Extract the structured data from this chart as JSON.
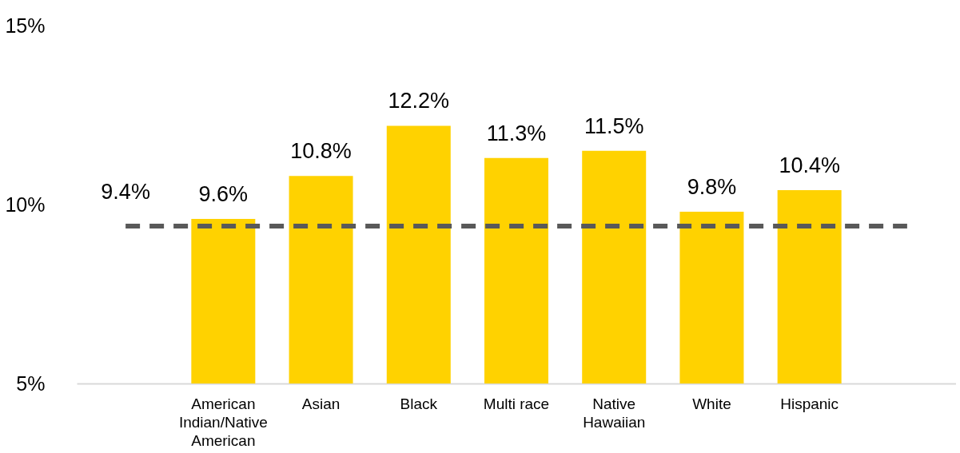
{
  "chart_data": {
    "type": "bar",
    "categories": [
      null,
      "American Indian/Native American",
      "Asian",
      "Black",
      "Multi race",
      "Native Hawaiian",
      "White",
      "Hispanic",
      null
    ],
    "series": [
      {
        "color": "#ffd200",
        "values": [
          null,
          9.6,
          10.8,
          12.2,
          11.3,
          11.5,
          9.8,
          10.4,
          null
        ],
        "value_labels": [
          null,
          "9.6%",
          "10.8%",
          "12.2%",
          "11.3%",
          "11.5%",
          "9.8%",
          "10.4%",
          null
        ]
      },
      {
        "type": "line",
        "color": "#595959",
        "line_style": "dashed",
        "values": [
          9.4,
          9.4,
          9.4,
          9.4,
          9.4,
          9.4,
          9.4,
          9.4,
          9.4
        ],
        "value_labels": [
          "9.4%",
          null,
          null,
          null,
          null,
          null,
          null,
          null,
          null
        ]
      }
    ],
    "ylim": [
      5,
      15
    ],
    "yticks": [
      {
        "value": 5,
        "label": "5%"
      },
      {
        "value": 10,
        "label": "10%"
      },
      {
        "value": 15,
        "label": "15%"
      }
    ],
    "grid": false
  }
}
